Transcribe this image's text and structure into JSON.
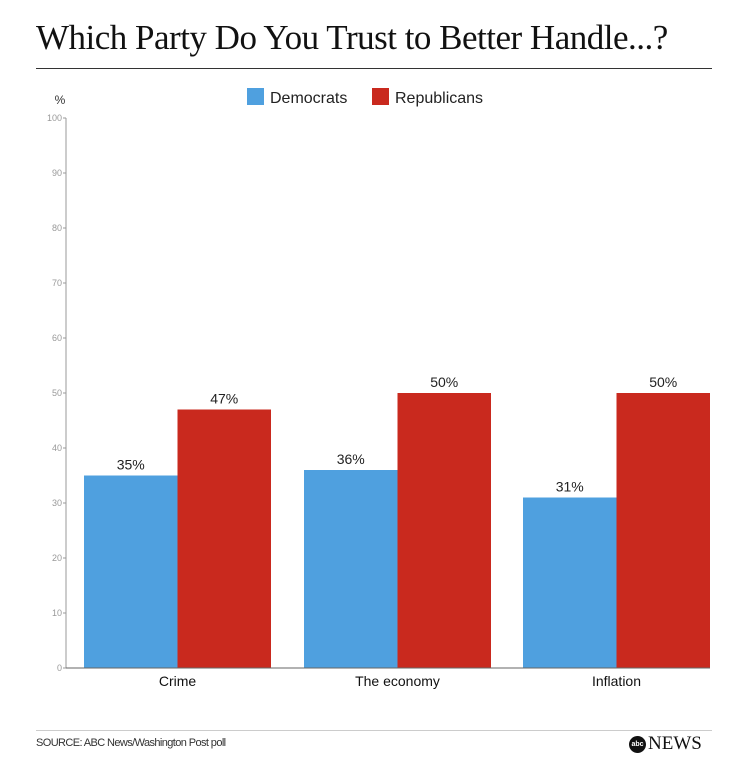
{
  "title": "Which Party Do You Trust to Better Handle...?",
  "source": "SOURCE: ABC News/Washington Post poll",
  "logo": {
    "mark": "abc",
    "text": "NEWS"
  },
  "chart_data": {
    "type": "bar",
    "title": "Which Party Do You Trust to Better Handle...?",
    "ylabel": "%",
    "xlabel": "",
    "ylim": [
      0,
      100
    ],
    "yticks": [
      0,
      10,
      20,
      30,
      40,
      50,
      60,
      70,
      80,
      90,
      100
    ],
    "categories": [
      "Crime",
      "The economy",
      "Inflation"
    ],
    "series": [
      {
        "name": "Democrats",
        "values": [
          35,
          36,
          31
        ],
        "labels": [
          "35%",
          "36%",
          "31%"
        ],
        "color": "#4fa0df"
      },
      {
        "name": "Republicans",
        "values": [
          47,
          50,
          50
        ],
        "labels": [
          "47%",
          "50%",
          "50%"
        ],
        "color": "#c9291e"
      }
    ],
    "legend": "top-center",
    "grid": false
  }
}
